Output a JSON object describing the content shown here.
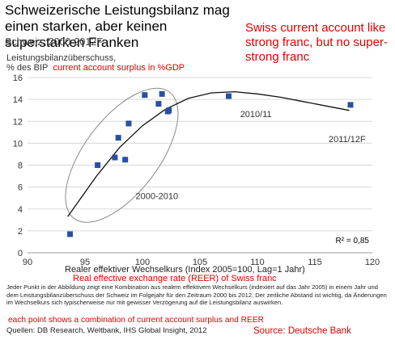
{
  "title_de": "Schweizerische Leistungsbilanz mag einen starken, aber keinen superstarken Franken",
  "subtitle_de": "Schweiz, 2000-2012F",
  "title_en": "Swiss current account like strong franc, but no super-strong franc",
  "ylabel_de_line1": "Leistungsbilanzüberschuss,",
  "ylabel_de_line2": "% des BIP",
  "ylabel_en": "current account surplus in %GDP",
  "xlabel_de": "Realer effektiver Wechselkurs (Index 2005=100, Lag=1 Jahr)",
  "xlabel_en": "Real effective exchange rate (REER) of Swiss franc",
  "note_de": "Jeder Punkt in der Abbildung zeigt eine Kombination aus realem effektivem Wechselkurs (indexiert auf das Jahr 2005) in einem Jahr und dem Leistungsbilanzüberschuss der Schweiz im Folgejahr für den Zeitraum 2000 bis 2012. Der zeitliche Abstand ist wichtig, da Änderungen im Wechselkurs sich typischerweise nur mit gewisser Verzögerung auf die Leistungsbilanz auswirken.",
  "note_en": "each point shows a combination of current account surplus and REER",
  "sources_de": "Quellen: DB Research, Weltbank, IHS Global Insight, 2012",
  "source_en": "Source: Deutsche Bank",
  "chart_data": {
    "type": "scatter",
    "xlabel": "Realer effektiver Wechselkurs (Index 2005=100, Lag=1 Jahr)",
    "ylabel": "Leistungsbilanzüberschuss, % des BIP",
    "xlim": [
      90,
      120
    ],
    "ylim": [
      0,
      16
    ],
    "xticks": [
      90,
      95,
      100,
      105,
      110,
      115,
      120
    ],
    "yticks": [
      0,
      2,
      4,
      6,
      8,
      10,
      12,
      14,
      16
    ],
    "grid": "horizontal",
    "points": [
      {
        "x": 93.7,
        "y": 1.7
      },
      {
        "x": 96.1,
        "y": 8.0
      },
      {
        "x": 97.6,
        "y": 8.7
      },
      {
        "x": 97.9,
        "y": 10.5
      },
      {
        "x": 98.5,
        "y": 8.5
      },
      {
        "x": 98.8,
        "y": 11.8
      },
      {
        "x": 100.2,
        "y": 14.4
      },
      {
        "x": 101.4,
        "y": 13.6
      },
      {
        "x": 101.7,
        "y": 14.5
      },
      {
        "x": 102.2,
        "y": 12.9
      },
      {
        "x": 102.3,
        "y": 13.0
      },
      {
        "x": 107.5,
        "y": 14.3
      },
      {
        "x": 118.1,
        "y": 13.5
      }
    ],
    "trendline": {
      "type": "quadratic",
      "x_from": 93.5,
      "x_to": 118,
      "points": [
        [
          93.5,
          3.3
        ],
        [
          96,
          7.0
        ],
        [
          98,
          9.6
        ],
        [
          100,
          11.6
        ],
        [
          102,
          13.1
        ],
        [
          104,
          14.1
        ],
        [
          106,
          14.6
        ],
        [
          108,
          14.7
        ],
        [
          110,
          14.5
        ],
        [
          112,
          14.2
        ],
        [
          114,
          13.8
        ],
        [
          116,
          13.4
        ],
        [
          118,
          13.0
        ]
      ]
    },
    "annotations": [
      {
        "text": "2010/11",
        "x": 108.5,
        "y": 12.4
      },
      {
        "text": "2011/12F",
        "x": 116.2,
        "y": 10.1
      },
      {
        "text": "2000-2010",
        "x": 99.4,
        "y": 4.9
      },
      {
        "text": "R² = 0,85",
        "x": 116.8,
        "y": 0.9
      }
    ],
    "ellipse_label": "2000-2010",
    "r_squared": "R² = 0,85",
    "colors": {
      "points": "#2a4fa3",
      "line": "#111111",
      "grid": "#d9d9d9",
      "ellipse": "#8a8a8a"
    }
  }
}
